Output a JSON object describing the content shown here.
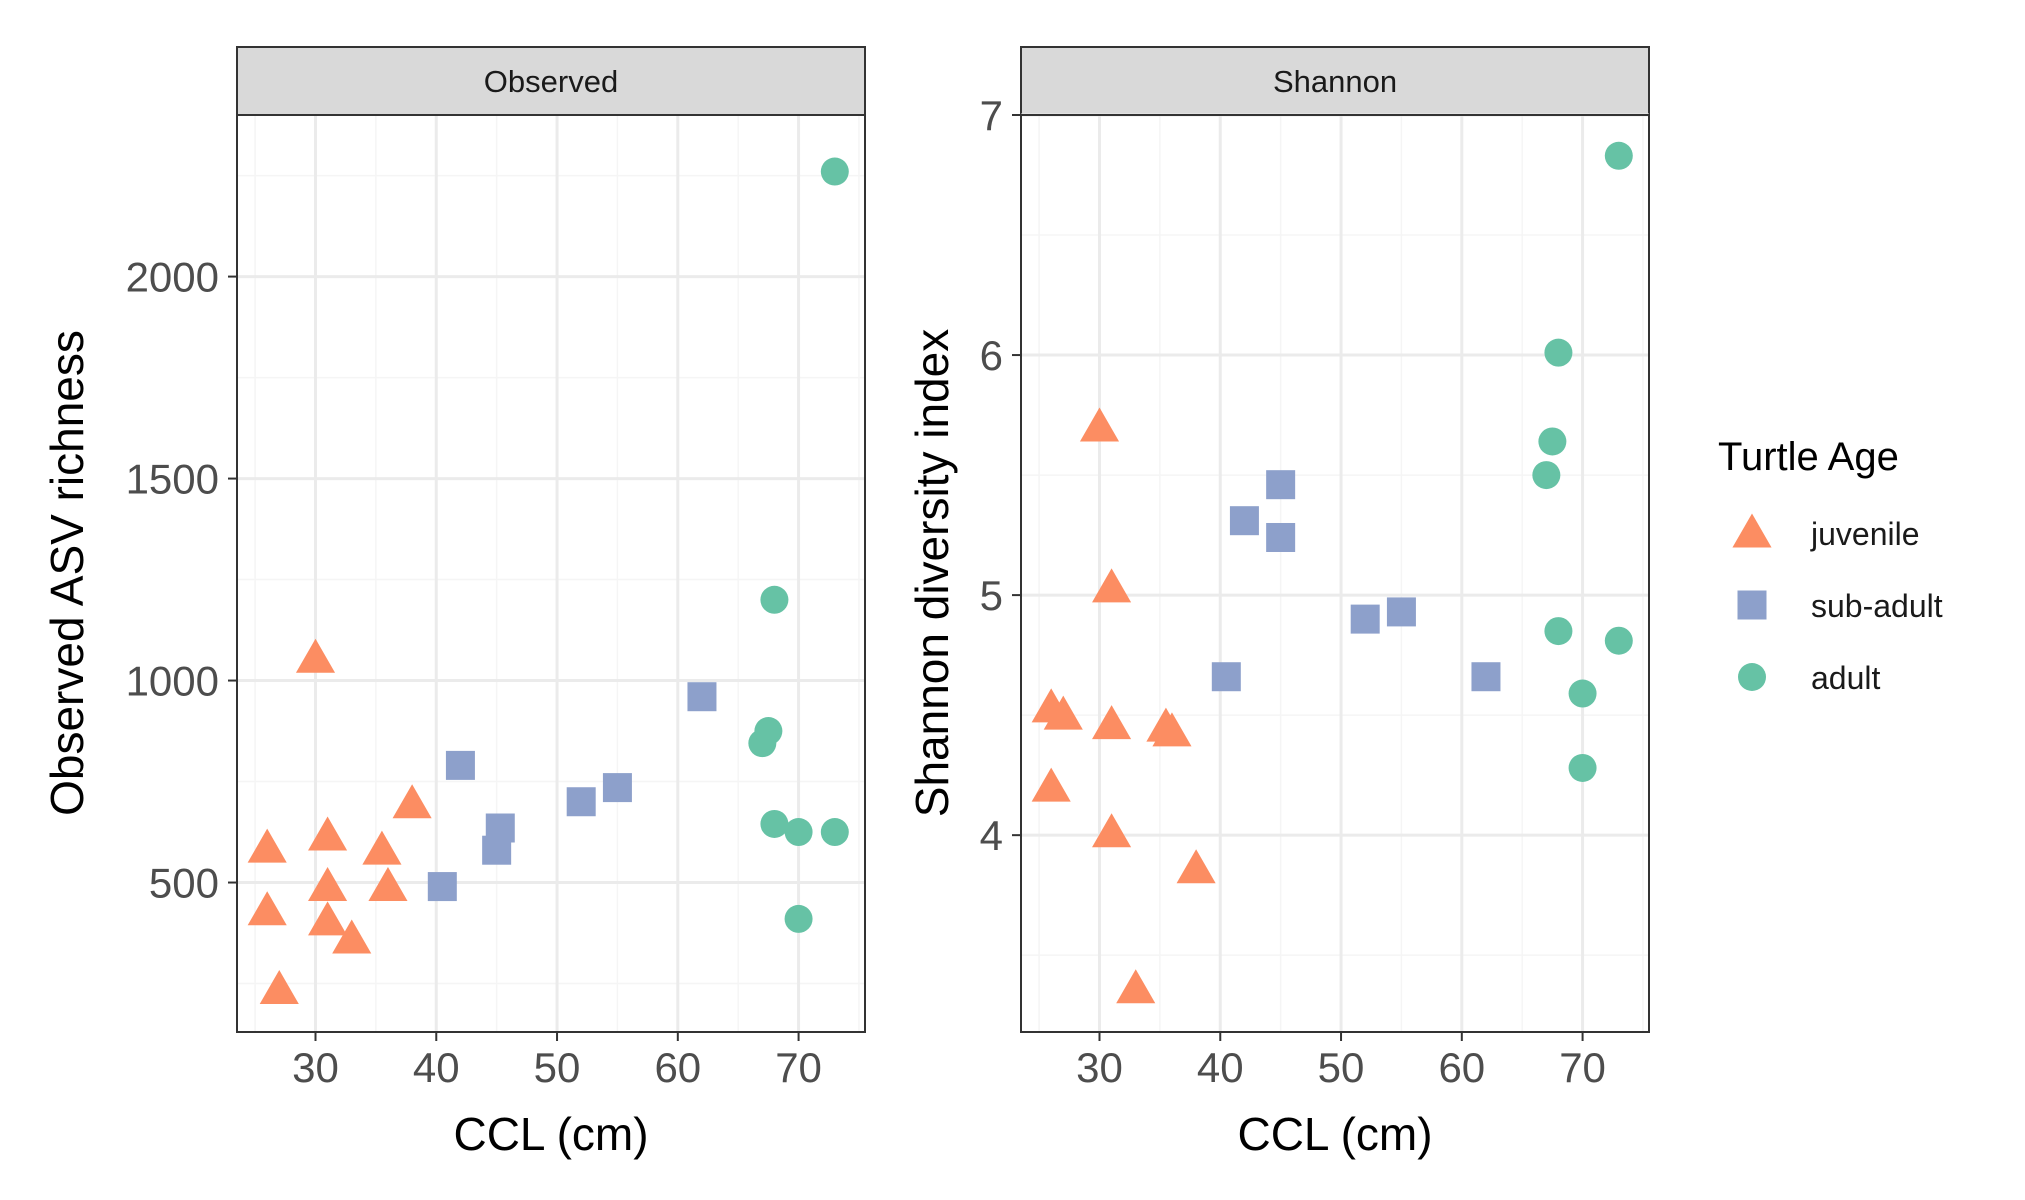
{
  "chart_data": [
    {
      "type": "scatter",
      "facet": "Observed",
      "xlabel": "CCL (cm)",
      "ylabel": "Observed ASV richness",
      "xlim": [
        23.5,
        75.5
      ],
      "ylim": [
        130,
        2400
      ],
      "xticks": [
        30,
        40,
        50,
        60,
        70
      ],
      "yticks": [
        500,
        1000,
        1500,
        2000
      ],
      "grid": true,
      "series": [
        {
          "name": "juvenile",
          "points": [
            {
              "x": 26,
              "y": 585
            },
            {
              "x": 26,
              "y": 430
            },
            {
              "x": 27,
              "y": 235
            },
            {
              "x": 30,
              "y": 1055
            },
            {
              "x": 31,
              "y": 615
            },
            {
              "x": 31,
              "y": 490
            },
            {
              "x": 31,
              "y": 405
            },
            {
              "x": 33,
              "y": 360
            },
            {
              "x": 35.5,
              "y": 580
            },
            {
              "x": 36,
              "y": 490
            },
            {
              "x": 38,
              "y": 695
            }
          ]
        },
        {
          "name": "sub-adult",
          "points": [
            {
              "x": 40.5,
              "y": 490
            },
            {
              "x": 42,
              "y": 790
            },
            {
              "x": 45,
              "y": 580
            },
            {
              "x": 45.3,
              "y": 635
            },
            {
              "x": 52,
              "y": 700
            },
            {
              "x": 55,
              "y": 735
            },
            {
              "x": 62,
              "y": 960
            }
          ]
        },
        {
          "name": "adult",
          "points": [
            {
              "x": 67,
              "y": 845
            },
            {
              "x": 67.5,
              "y": 875
            },
            {
              "x": 68,
              "y": 1200
            },
            {
              "x": 68,
              "y": 645
            },
            {
              "x": 70,
              "y": 625
            },
            {
              "x": 70,
              "y": 410
            },
            {
              "x": 73,
              "y": 625
            },
            {
              "x": 73,
              "y": 2260
            }
          ]
        }
      ]
    },
    {
      "type": "scatter",
      "facet": "Shannon",
      "xlabel": "CCL (cm)",
      "ylabel": "Shannon diversity index",
      "xlim": [
        23.5,
        75.5
      ],
      "ylim": [
        3.18,
        7.0
      ],
      "xticks": [
        30,
        40,
        50,
        60,
        70
      ],
      "yticks": [
        4,
        5,
        6,
        7
      ],
      "grid": true,
      "series": [
        {
          "name": "juvenile",
          "points": [
            {
              "x": 26,
              "y": 4.53
            },
            {
              "x": 26,
              "y": 4.2
            },
            {
              "x": 27,
              "y": 4.5
            },
            {
              "x": 30,
              "y": 5.7
            },
            {
              "x": 31,
              "y": 5.03
            },
            {
              "x": 31,
              "y": 4.46
            },
            {
              "x": 31,
              "y": 4.01
            },
            {
              "x": 33,
              "y": 3.36
            },
            {
              "x": 35.5,
              "y": 4.45
            },
            {
              "x": 36,
              "y": 4.43
            },
            {
              "x": 38,
              "y": 3.86
            }
          ]
        },
        {
          "name": "sub-adult",
          "points": [
            {
              "x": 40.5,
              "y": 4.66
            },
            {
              "x": 42,
              "y": 5.31
            },
            {
              "x": 45,
              "y": 5.46
            },
            {
              "x": 45,
              "y": 5.24
            },
            {
              "x": 52,
              "y": 4.9
            },
            {
              "x": 55,
              "y": 4.93
            },
            {
              "x": 62,
              "y": 4.66
            }
          ]
        },
        {
          "name": "adult",
          "points": [
            {
              "x": 67,
              "y": 5.5
            },
            {
              "x": 67.5,
              "y": 5.64
            },
            {
              "x": 68,
              "y": 6.01
            },
            {
              "x": 68,
              "y": 4.85
            },
            {
              "x": 70,
              "y": 4.59
            },
            {
              "x": 70,
              "y": 4.28
            },
            {
              "x": 73,
              "y": 4.81
            },
            {
              "x": 73,
              "y": 6.83
            }
          ]
        }
      ]
    }
  ],
  "legend": {
    "title": "Turtle Age",
    "placement": "right",
    "items": [
      {
        "label": "juvenile",
        "shape": "triangle",
        "color": "#fc8d62"
      },
      {
        "label": "sub-adult",
        "shape": "square",
        "color": "#8da0cb"
      },
      {
        "label": "adult",
        "shape": "circle",
        "color": "#66c2a5"
      }
    ]
  },
  "colors": {
    "juvenile": "#fc8d62",
    "sub-adult": "#8da0cb",
    "adult": "#66c2a5",
    "strip_fill": "#d9d9d9",
    "grid_major": "#ebebeb",
    "grid_minor": "#f5f5f5",
    "panel_border": "#333333"
  }
}
